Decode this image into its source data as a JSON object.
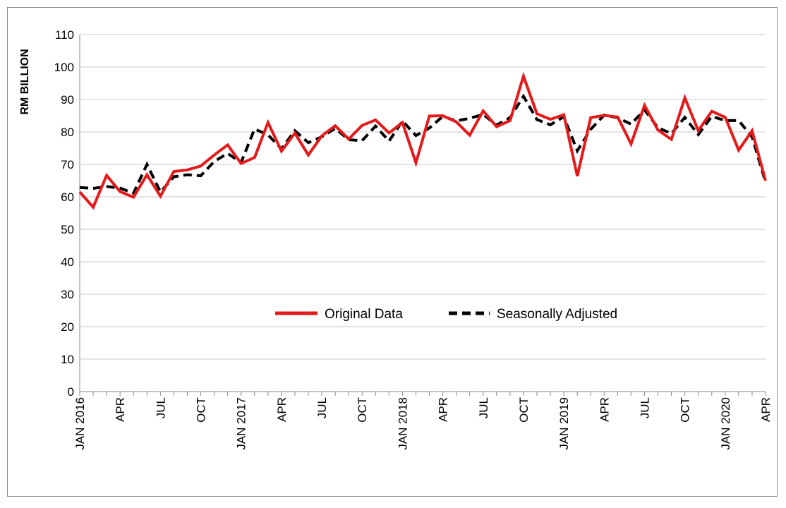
{
  "chart_data": {
    "type": "line",
    "title": "",
    "xlabel": "",
    "ylabel": "RM BILLION",
    "ylim": [
      0,
      110
    ],
    "yticks": [
      0,
      10,
      20,
      30,
      40,
      50,
      60,
      70,
      80,
      90,
      100,
      110
    ],
    "grid": true,
    "legend_position": "center",
    "x": [
      "Jan 2016",
      "Feb 2016",
      "Mar 2016",
      "Apr 2016",
      "May 2016",
      "Jun 2016",
      "Jul 2016",
      "Aug 2016",
      "Sep 2016",
      "Oct 2016",
      "Nov 2016",
      "Dec 2016",
      "Jan 2017",
      "Feb 2017",
      "Mar 2017",
      "Apr 2017",
      "May 2017",
      "Jun 2017",
      "Jul 2017",
      "Aug 2017",
      "Sep 2017",
      "Oct 2017",
      "Nov 2017",
      "Dec 2017",
      "Jan 2018",
      "Feb 2018",
      "Mar 2018",
      "Apr 2018",
      "May 2018",
      "Jun 2018",
      "Jul 2018",
      "Aug 2018",
      "Sep 2018",
      "Oct 2018",
      "Nov 2018",
      "Dec 2018",
      "Jan 2019",
      "Feb 2019",
      "Mar 2019",
      "Apr 2019",
      "May 2019",
      "Jun 2019",
      "Jul 2019",
      "Aug 2019",
      "Sep 2019",
      "Oct 2019",
      "Nov 2019",
      "Dec 2019",
      "Jan 2020",
      "Feb 2020",
      "Mar 2020",
      "Apr 2020"
    ],
    "tick_labels": [
      "JAN 2016",
      "",
      "",
      "APR",
      "",
      "",
      "JUL",
      "",
      "",
      "OCT",
      "",
      "",
      "JAN 2017",
      "",
      "",
      "APR",
      "",
      "",
      "JUL",
      "",
      "",
      "OCT",
      "",
      "",
      "JAN 2018",
      "",
      "",
      "APR",
      "",
      "",
      "JUL",
      "",
      "",
      "OCT",
      "",
      "",
      "JAN 2019",
      "",
      "",
      "APR",
      "",
      "",
      "JUL",
      "",
      "",
      "OCT",
      "",
      "",
      "JAN 2020",
      "",
      "",
      "APR"
    ],
    "series": [
      {
        "name": "Original Data",
        "color": "#e41a1a",
        "style": "solid",
        "values": [
          61.5,
          56.8,
          66.6,
          61.6,
          59.9,
          66.8,
          60.2,
          67.8,
          68.3,
          69.5,
          72.9,
          76.0,
          70.3,
          72.1,
          82.9,
          74.1,
          79.6,
          72.9,
          78.8,
          81.9,
          77.8,
          82.0,
          83.7,
          79.7,
          82.9,
          70.5,
          84.9,
          85.0,
          83.1,
          79.0,
          86.5,
          81.6,
          83.5,
          97.2,
          85.6,
          83.9,
          85.3,
          66.4,
          84.4,
          85.1,
          84.6,
          76.3,
          88.2,
          80.6,
          77.7,
          90.5,
          80.4,
          86.4,
          84.5,
          74.4,
          80.4,
          65.0
        ]
      },
      {
        "name": "Seasonally Adjusted",
        "color": "#000000",
        "style": "dashed",
        "values": [
          62.9,
          62.6,
          63.2,
          62.7,
          61.1,
          70.0,
          61.5,
          66.2,
          66.8,
          66.5,
          70.9,
          73.4,
          70.6,
          80.9,
          79.1,
          74.8,
          80.4,
          76.7,
          78.5,
          81.1,
          77.6,
          77.3,
          81.8,
          77.2,
          83.4,
          78.9,
          81.2,
          84.8,
          83.4,
          84.2,
          85.4,
          82.1,
          84.4,
          91.0,
          83.8,
          82.2,
          84.7,
          74.2,
          80.8,
          85.2,
          84.4,
          82.4,
          86.8,
          81.3,
          79.5,
          84.5,
          79.2,
          84.8,
          83.5,
          83.5,
          78.5,
          64.5
        ]
      }
    ]
  }
}
